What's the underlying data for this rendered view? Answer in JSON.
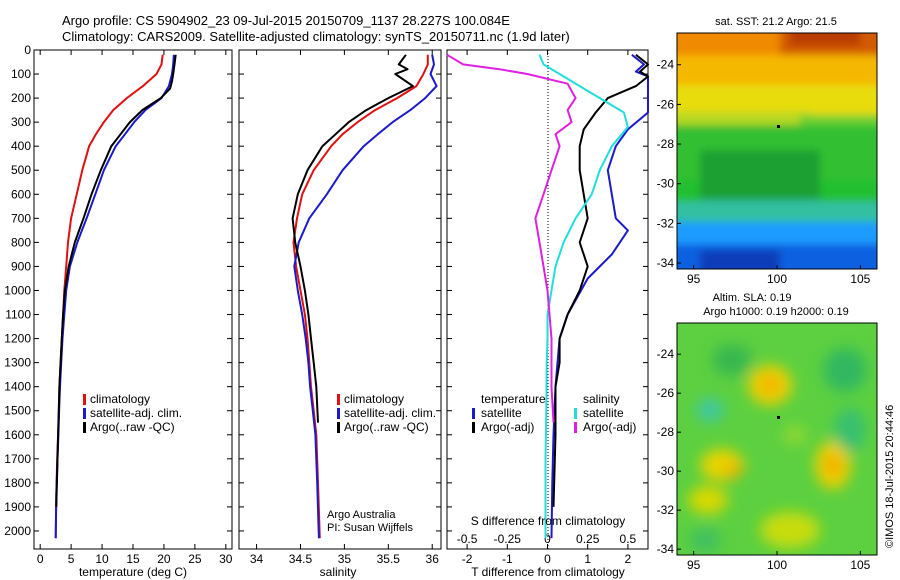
{
  "header": {
    "title_line1": "Argo profile: CS 5904902_23 09-Jul-2015 20150709_1137 28.227S 100.084E",
    "title_line2": "Climatology: CARS2009. Satellite-adjusted climatology: synTS_20150711.nc (1.9d later)"
  },
  "colors": {
    "climatology": "#e01010",
    "satellite": "#1a1acc",
    "argo": "#000000",
    "sal_satellite": "#22dddd",
    "sal_argo": "#e020e0"
  },
  "chart_data": [
    {
      "id": "temperature",
      "type": "line",
      "xlabel": "temperature (deg C)",
      "xlim": [
        -1,
        31
      ],
      "xticks": [
        0,
        5,
        10,
        15,
        20,
        25,
        30
      ],
      "ylim": [
        2075,
        0
      ],
      "yticks": [
        0,
        100,
        200,
        300,
        400,
        500,
        600,
        700,
        800,
        900,
        1000,
        1100,
        1200,
        1300,
        1400,
        1500,
        1600,
        1700,
        1800,
        1900,
        2000
      ],
      "legend": [
        "climatology",
        "satellite-adj. clim.",
        "Argo(..raw -QC)"
      ],
      "series": [
        {
          "name": "climatology",
          "color_key": "climatology",
          "x": [
            19.8,
            19.6,
            18.8,
            16.6,
            14.0,
            11.8,
            10.3,
            9.0,
            7.9,
            6.8,
            5.9,
            5.0,
            4.5,
            4.2,
            3.9,
            3.7,
            3.5,
            3.3,
            3.1,
            3.0,
            2.9,
            2.75,
            2.6,
            2.5
          ],
          "y": [
            20,
            60,
            100,
            150,
            200,
            250,
            300,
            350,
            400,
            500,
            600,
            700,
            800,
            900,
            1000,
            1100,
            1200,
            1300,
            1400,
            1500,
            1600,
            1700,
            1850,
            2030
          ]
        },
        {
          "name": "satellite-adj. clim.",
          "color_key": "satellite",
          "x": [
            21.6,
            21.5,
            21.3,
            20.8,
            19.6,
            17.0,
            15.2,
            13.7,
            12.2,
            10.3,
            8.9,
            7.5,
            6.0,
            4.8,
            4.2,
            3.9,
            3.6,
            3.4,
            3.2,
            3.05,
            2.95,
            2.8,
            2.6,
            2.5
          ],
          "y": [
            20,
            60,
            100,
            150,
            200,
            250,
            300,
            350,
            400,
            500,
            600,
            700,
            800,
            900,
            1000,
            1100,
            1200,
            1300,
            1400,
            1500,
            1600,
            1700,
            1850,
            2030
          ]
        },
        {
          "name": "Argo(..raw -QC)",
          "color_key": "argo",
          "x": [
            21.9,
            21.7,
            21.5,
            21.3,
            21.0,
            19.5,
            16.5,
            14.5,
            13.0,
            11.5,
            9.8,
            8.3,
            7.0,
            5.6,
            4.6,
            4.0,
            3.7,
            3.5,
            3.3,
            3.1,
            3.0,
            2.9,
            2.8,
            2.6
          ],
          "y": [
            20,
            60,
            100,
            130,
            160,
            200,
            250,
            300,
            350,
            400,
            500,
            600,
            700,
            800,
            900,
            1000,
            1100,
            1200,
            1300,
            1400,
            1500,
            1600,
            1700,
            1900
          ]
        }
      ]
    },
    {
      "id": "salinity",
      "type": "line",
      "xlabel": "salinity",
      "xlim": [
        33.8,
        36.1
      ],
      "xticks": [
        34,
        34.5,
        35,
        35.5,
        36
      ],
      "ylim": [
        2075,
        0
      ],
      "legend": [
        "climatology",
        "satellite-adj. clim.",
        "Argo(..raw -QC)"
      ],
      "annotation": [
        "Argo Australia",
        "PI: Susan Wijffels"
      ],
      "series": [
        {
          "name": "climatology",
          "color_key": "climatology",
          "x": [
            35.95,
            35.95,
            35.9,
            35.82,
            35.6,
            35.35,
            35.15,
            34.98,
            34.85,
            34.65,
            34.52,
            34.46,
            34.42,
            34.45,
            34.5,
            34.55,
            34.58,
            34.6,
            34.62,
            34.65,
            34.68,
            34.7,
            34.72
          ],
          "y": [
            20,
            60,
            100,
            150,
            200,
            250,
            300,
            350,
            400,
            500,
            600,
            700,
            800,
            900,
            1000,
            1100,
            1200,
            1300,
            1400,
            1500,
            1600,
            1800,
            2030
          ]
        },
        {
          "name": "satellite-adj. clim.",
          "color_key": "satellite",
          "x": [
            36.0,
            36.02,
            35.98,
            36.05,
            35.92,
            35.75,
            35.55,
            35.38,
            35.22,
            34.98,
            34.8,
            34.6,
            34.48,
            34.43,
            34.47,
            34.52,
            34.56,
            34.59,
            34.61,
            34.64,
            34.67,
            34.69,
            34.71
          ],
          "y": [
            20,
            60,
            100,
            150,
            200,
            250,
            300,
            350,
            400,
            500,
            600,
            700,
            800,
            900,
            1000,
            1100,
            1200,
            1300,
            1400,
            1500,
            1600,
            1800,
            2030
          ]
        },
        {
          "name": "Argo(..raw -QC)",
          "color_key": "argo",
          "x": [
            35.7,
            35.62,
            35.72,
            35.58,
            35.78,
            35.5,
            35.25,
            35.05,
            34.9,
            34.75,
            34.58,
            34.47,
            34.41,
            34.44,
            34.5,
            34.55,
            34.59,
            34.62,
            34.65,
            34.68,
            34.7
          ],
          "y": [
            20,
            60,
            80,
            100,
            150,
            200,
            250,
            300,
            350,
            400,
            500,
            600,
            700,
            800,
            900,
            1000,
            1100,
            1200,
            1300,
            1400,
            1550
          ]
        }
      ]
    },
    {
      "id": "differences",
      "type": "line",
      "xlabel": "T difference from climatology",
      "xlabel_top": "S difference from climatology",
      "xlim": [
        -2.5,
        2.5
      ],
      "xticks": [
        -2,
        -1,
        0,
        1,
        2
      ],
      "xticks_secondary": [
        "-0.5",
        "-0.25",
        "0",
        "0.25",
        "0.5"
      ],
      "xticks_secondary_pos": [
        -2,
        -1,
        0,
        1,
        2
      ],
      "ylim": [
        2075,
        0
      ],
      "legend_title_left": "temperature",
      "legend_title_right": "salinity",
      "legend": [
        "satellite",
        "Argo(-adj)",
        "satellite",
        "Argo(-adj)"
      ],
      "series": [
        {
          "name": "T satellite",
          "color_key": "satellite",
          "x": [
            2.1,
            2.4,
            2.2,
            2.6,
            2.9,
            3.0,
            2.5,
            2.0,
            1.7,
            1.5,
            1.6,
            1.7,
            2.0,
            1.6,
            1.0,
            0.5,
            0.3,
            0.25,
            0.2,
            0.15,
            0.12,
            0.1
          ],
          "y": [
            20,
            60,
            90,
            110,
            150,
            200,
            260,
            330,
            400,
            500,
            600,
            700,
            750,
            850,
            950,
            1100,
            1200,
            1300,
            1400,
            1600,
            1800,
            2030
          ]
        },
        {
          "name": "T Argo(-adj)",
          "color_key": "argo",
          "x": [
            2.2,
            2.6,
            2.3,
            2.8,
            2.2,
            1.5,
            1.2,
            0.9,
            0.8,
            0.8,
            0.9,
            1.0,
            0.8,
            1.0,
            0.8,
            0.5,
            0.3,
            0.3,
            0.2,
            0.2,
            0.15
          ],
          "y": [
            20,
            60,
            90,
            110,
            150,
            200,
            260,
            330,
            400,
            500,
            600,
            700,
            800,
            900,
            1000,
            1100,
            1200,
            1300,
            1400,
            1600,
            1900
          ]
        },
        {
          "name": "S satellite",
          "color_key": "sal_satellite",
          "x": [
            -0.2,
            -0.1,
            0.3,
            0.8,
            1.3,
            1.9,
            2.0,
            1.6,
            1.3,
            1.1,
            0.7,
            0.4,
            0.2,
            0.1,
            0.0,
            0.0,
            -0.02,
            -0.03,
            -0.05,
            -0.05
          ],
          "y": [
            20,
            60,
            100,
            150,
            200,
            260,
            320,
            400,
            500,
            600,
            700,
            800,
            900,
            1000,
            1100,
            1200,
            1300,
            1500,
            1700,
            2030
          ]
        },
        {
          "name": "S Argo(-adj)",
          "color_key": "sal_argo",
          "x": [
            -2.5,
            -2.1,
            -1.2,
            -0.5,
            0.5,
            0.7,
            0.5,
            0.6,
            0.2,
            0.3,
            0.1,
            -0.1,
            -0.3,
            -0.2,
            -0.1,
            0.0,
            0.05,
            0.1,
            0.1,
            0.15
          ],
          "y": [
            20,
            60,
            80,
            100,
            140,
            200,
            250,
            300,
            350,
            400,
            500,
            600,
            700,
            800,
            900,
            1000,
            1100,
            1200,
            1400,
            1550
          ]
        }
      ]
    },
    {
      "id": "sst_map",
      "type": "heatmap",
      "title": "sat. SST: 21.2  Argo: 21.5",
      "xlim": [
        94,
        106
      ],
      "ylim": [
        -34.3,
        -22.4
      ],
      "xticks": [
        95,
        100,
        105
      ],
      "yticks": [
        -24,
        -26,
        -28,
        -30,
        -32,
        -34
      ],
      "point": {
        "x": 100.084,
        "y": -28.227
      }
    },
    {
      "id": "sla_map",
      "type": "heatmap",
      "title_line1": "Altim. SLA: 0.19",
      "title_line2": "Argo h1000: 0.19 h2000: 0.19",
      "xlim": [
        94,
        106
      ],
      "ylim": [
        -34.3,
        -22.4
      ],
      "xticks": [
        95,
        100,
        105
      ],
      "yticks": [
        -24,
        -26,
        -28,
        -30,
        -32,
        -34
      ],
      "point": {
        "x": 100.084,
        "y": -28.227
      }
    }
  ],
  "watermark": "©IMOS 18-Jul-2015 20:44:46"
}
